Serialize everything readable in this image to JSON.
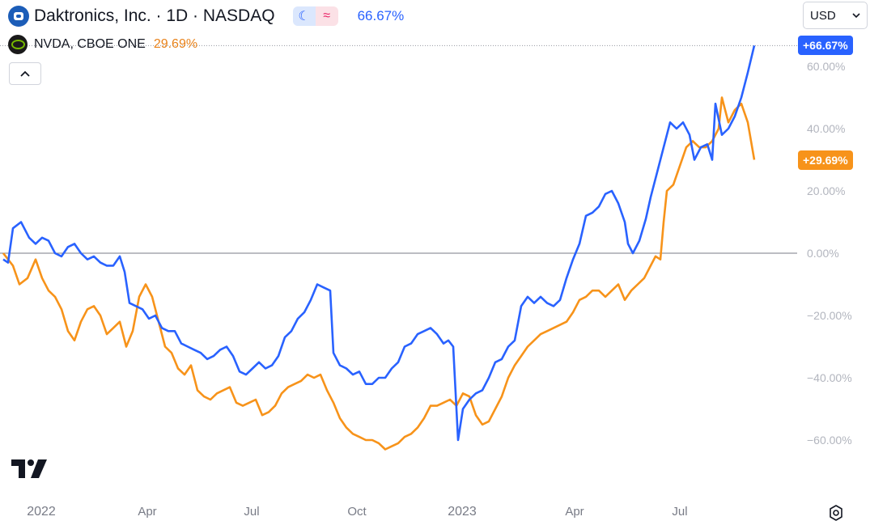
{
  "header": {
    "title": "Daktronics, Inc. · 1D · NASDAQ",
    "main_change": "66.67%",
    "compare_name": "NVDA, CBOE ONE",
    "compare_change": "29.69%",
    "currency": "USD",
    "icons": {
      "logo": "daktronics-logo-icon",
      "moon": "moon-icon",
      "wave": "approx-wave-icon",
      "collapse": "chevron-up-icon",
      "settings": "settings-gear-icon",
      "chart_logo": "tradingview-logo-icon"
    }
  },
  "price_tags": {
    "main": "+66.67%",
    "compare": "+29.69%"
  },
  "colors": {
    "main_series": "#2962ff",
    "compare_series": "#f7931a",
    "baseline": "#787b86"
  },
  "chart_data": {
    "type": "line",
    "ylim": [
      -70,
      70
    ],
    "y_ticks": [
      {
        "value": 60,
        "label": "60.00%"
      },
      {
        "value": 40,
        "label": "40.00%"
      },
      {
        "value": 20,
        "label": "20.00%"
      },
      {
        "value": 0,
        "label": "0.00%"
      },
      {
        "value": -20,
        "label": "−20.00%"
      },
      {
        "value": -40,
        "label": "−40.00%"
      },
      {
        "value": -60,
        "label": "−60.00%"
      }
    ],
    "x_ticks": [
      {
        "t": 0.006,
        "label": "2022",
        "major": true
      },
      {
        "t": 0.178,
        "label": "Apr",
        "major": false
      },
      {
        "t": 0.307,
        "label": "Jul",
        "major": false
      },
      {
        "t": 0.437,
        "label": "Oct",
        "major": false
      },
      {
        "t": 0.567,
        "label": "2023",
        "major": true
      },
      {
        "t": 0.706,
        "label": "Apr",
        "major": false
      },
      {
        "t": 0.836,
        "label": "Jul",
        "major": false
      }
    ],
    "series": [
      {
        "name": "Daktronics, Inc.",
        "points": [
          [
            0,
            -2
          ],
          [
            0.006,
            -3
          ],
          [
            0.012,
            8
          ],
          [
            0.022,
            10
          ],
          [
            0.032,
            5
          ],
          [
            0.04,
            3
          ],
          [
            0.048,
            5
          ],
          [
            0.056,
            4
          ],
          [
            0.064,
            0
          ],
          [
            0.072,
            -1
          ],
          [
            0.08,
            2
          ],
          [
            0.088,
            3
          ],
          [
            0.096,
            0
          ],
          [
            0.104,
            -2
          ],
          [
            0.112,
            -1
          ],
          [
            0.12,
            -3
          ],
          [
            0.128,
            -4
          ],
          [
            0.136,
            -4
          ],
          [
            0.144,
            -1
          ],
          [
            0.15,
            -6
          ],
          [
            0.156,
            -16
          ],
          [
            0.164,
            -17
          ],
          [
            0.172,
            -18
          ],
          [
            0.18,
            -21
          ],
          [
            0.188,
            -20
          ],
          [
            0.196,
            -24
          ],
          [
            0.204,
            -25
          ],
          [
            0.212,
            -25
          ],
          [
            0.22,
            -29
          ],
          [
            0.228,
            -30
          ],
          [
            0.236,
            -31
          ],
          [
            0.244,
            -32
          ],
          [
            0.252,
            -34
          ],
          [
            0.26,
            -33
          ],
          [
            0.268,
            -31
          ],
          [
            0.276,
            -30
          ],
          [
            0.284,
            -33
          ],
          [
            0.292,
            -38
          ],
          [
            0.3,
            -39
          ],
          [
            0.308,
            -37
          ],
          [
            0.316,
            -35
          ],
          [
            0.324,
            -37
          ],
          [
            0.332,
            -36
          ],
          [
            0.34,
            -33
          ],
          [
            0.348,
            -27
          ],
          [
            0.356,
            -25
          ],
          [
            0.364,
            -21
          ],
          [
            0.372,
            -19
          ],
          [
            0.38,
            -15
          ],
          [
            0.388,
            -10
          ],
          [
            0.396,
            -11
          ],
          [
            0.404,
            -12
          ],
          [
            0.408,
            -32
          ],
          [
            0.416,
            -36
          ],
          [
            0.424,
            -37
          ],
          [
            0.432,
            -39
          ],
          [
            0.44,
            -38
          ],
          [
            0.448,
            -42
          ],
          [
            0.456,
            -42
          ],
          [
            0.464,
            -40
          ],
          [
            0.472,
            -40
          ],
          [
            0.48,
            -37
          ],
          [
            0.488,
            -35
          ],
          [
            0.496,
            -30
          ],
          [
            0.504,
            -29
          ],
          [
            0.512,
            -26
          ],
          [
            0.52,
            -25
          ],
          [
            0.528,
            -24
          ],
          [
            0.536,
            -26
          ],
          [
            0.544,
            -29
          ],
          [
            0.55,
            -28
          ],
          [
            0.556,
            -30
          ],
          [
            0.562,
            -60
          ],
          [
            0.568,
            -50
          ],
          [
            0.576,
            -47
          ],
          [
            0.584,
            -45
          ],
          [
            0.592,
            -44
          ],
          [
            0.6,
            -40
          ],
          [
            0.608,
            -35
          ],
          [
            0.616,
            -34
          ],
          [
            0.624,
            -30
          ],
          [
            0.632,
            -28
          ],
          [
            0.64,
            -17
          ],
          [
            0.648,
            -14
          ],
          [
            0.656,
            -16
          ],
          [
            0.664,
            -14
          ],
          [
            0.672,
            -16
          ],
          [
            0.68,
            -17
          ],
          [
            0.688,
            -15
          ],
          [
            0.696,
            -8
          ],
          [
            0.704,
            -2
          ],
          [
            0.712,
            3
          ],
          [
            0.72,
            12
          ],
          [
            0.728,
            13
          ],
          [
            0.736,
            15
          ],
          [
            0.744,
            19
          ],
          [
            0.752,
            20
          ],
          [
            0.76,
            16
          ],
          [
            0.768,
            10
          ],
          [
            0.772,
            3
          ],
          [
            0.778,
            0
          ],
          [
            0.786,
            4
          ],
          [
            0.794,
            11
          ],
          [
            0.8,
            18
          ],
          [
            0.808,
            26
          ],
          [
            0.816,
            34
          ],
          [
            0.824,
            42
          ],
          [
            0.832,
            40
          ],
          [
            0.84,
            42
          ],
          [
            0.848,
            38
          ],
          [
            0.854,
            30
          ],
          [
            0.862,
            34
          ],
          [
            0.87,
            35
          ],
          [
            0.876,
            30
          ],
          [
            0.88,
            48
          ],
          [
            0.888,
            38
          ],
          [
            0.896,
            40
          ],
          [
            0.904,
            44
          ],
          [
            0.912,
            50
          ],
          [
            0.92,
            58
          ],
          [
            0.928,
            66.67
          ]
        ]
      },
      {
        "name": "NVDA, CBOE ONE",
        "points": [
          [
            0,
            0
          ],
          [
            0.006,
            -2
          ],
          [
            0.012,
            -4
          ],
          [
            0.02,
            -10
          ],
          [
            0.03,
            -8
          ],
          [
            0.04,
            -2
          ],
          [
            0.048,
            -8
          ],
          [
            0.056,
            -12
          ],
          [
            0.064,
            -14
          ],
          [
            0.072,
            -18
          ],
          [
            0.08,
            -25
          ],
          [
            0.088,
            -28
          ],
          [
            0.096,
            -22
          ],
          [
            0.104,
            -18
          ],
          [
            0.112,
            -17
          ],
          [
            0.12,
            -20
          ],
          [
            0.128,
            -26
          ],
          [
            0.136,
            -24
          ],
          [
            0.144,
            -22
          ],
          [
            0.152,
            -30
          ],
          [
            0.16,
            -25
          ],
          [
            0.168,
            -14
          ],
          [
            0.176,
            -10
          ],
          [
            0.184,
            -14
          ],
          [
            0.192,
            -22
          ],
          [
            0.2,
            -30
          ],
          [
            0.208,
            -32
          ],
          [
            0.216,
            -37
          ],
          [
            0.224,
            -39
          ],
          [
            0.232,
            -36
          ],
          [
            0.24,
            -44
          ],
          [
            0.248,
            -46
          ],
          [
            0.256,
            -47
          ],
          [
            0.264,
            -45
          ],
          [
            0.272,
            -44
          ],
          [
            0.28,
            -43
          ],
          [
            0.288,
            -48
          ],
          [
            0.296,
            -49
          ],
          [
            0.304,
            -48
          ],
          [
            0.312,
            -47
          ],
          [
            0.32,
            -52
          ],
          [
            0.328,
            -51
          ],
          [
            0.336,
            -49
          ],
          [
            0.344,
            -45
          ],
          [
            0.352,
            -43
          ],
          [
            0.36,
            -42
          ],
          [
            0.368,
            -41
          ],
          [
            0.376,
            -39
          ],
          [
            0.384,
            -40
          ],
          [
            0.392,
            -39
          ],
          [
            0.4,
            -44
          ],
          [
            0.408,
            -48
          ],
          [
            0.416,
            -53
          ],
          [
            0.424,
            -56
          ],
          [
            0.432,
            -58
          ],
          [
            0.44,
            -59
          ],
          [
            0.448,
            -60
          ],
          [
            0.456,
            -60
          ],
          [
            0.464,
            -61
          ],
          [
            0.472,
            -63
          ],
          [
            0.48,
            -62
          ],
          [
            0.488,
            -61
          ],
          [
            0.496,
            -59
          ],
          [
            0.504,
            -58
          ],
          [
            0.512,
            -56
          ],
          [
            0.52,
            -53
          ],
          [
            0.528,
            -49
          ],
          [
            0.536,
            -49
          ],
          [
            0.544,
            -48
          ],
          [
            0.552,
            -47
          ],
          [
            0.56,
            -49
          ],
          [
            0.568,
            -45
          ],
          [
            0.576,
            -46
          ],
          [
            0.584,
            -52
          ],
          [
            0.592,
            -55
          ],
          [
            0.6,
            -54
          ],
          [
            0.608,
            -50
          ],
          [
            0.616,
            -46
          ],
          [
            0.624,
            -40
          ],
          [
            0.632,
            -36
          ],
          [
            0.64,
            -33
          ],
          [
            0.648,
            -30
          ],
          [
            0.656,
            -28
          ],
          [
            0.664,
            -26
          ],
          [
            0.672,
            -25
          ],
          [
            0.68,
            -24
          ],
          [
            0.688,
            -23
          ],
          [
            0.696,
            -22
          ],
          [
            0.704,
            -19
          ],
          [
            0.712,
            -15
          ],
          [
            0.72,
            -14
          ],
          [
            0.728,
            -12
          ],
          [
            0.736,
            -12
          ],
          [
            0.744,
            -14
          ],
          [
            0.752,
            -12
          ],
          [
            0.76,
            -10
          ],
          [
            0.768,
            -15
          ],
          [
            0.776,
            -12
          ],
          [
            0.784,
            -10
          ],
          [
            0.792,
            -8
          ],
          [
            0.8,
            -4
          ],
          [
            0.806,
            -1
          ],
          [
            0.812,
            -2
          ],
          [
            0.816,
            10
          ],
          [
            0.82,
            20
          ],
          [
            0.828,
            22
          ],
          [
            0.836,
            28
          ],
          [
            0.844,
            34
          ],
          [
            0.852,
            36
          ],
          [
            0.86,
            34
          ],
          [
            0.868,
            34
          ],
          [
            0.876,
            36
          ],
          [
            0.884,
            40
          ],
          [
            0.888,
            50
          ],
          [
            0.896,
            42
          ],
          [
            0.904,
            46
          ],
          [
            0.912,
            48
          ],
          [
            0.92,
            42
          ],
          [
            0.928,
            30
          ]
        ]
      }
    ]
  }
}
